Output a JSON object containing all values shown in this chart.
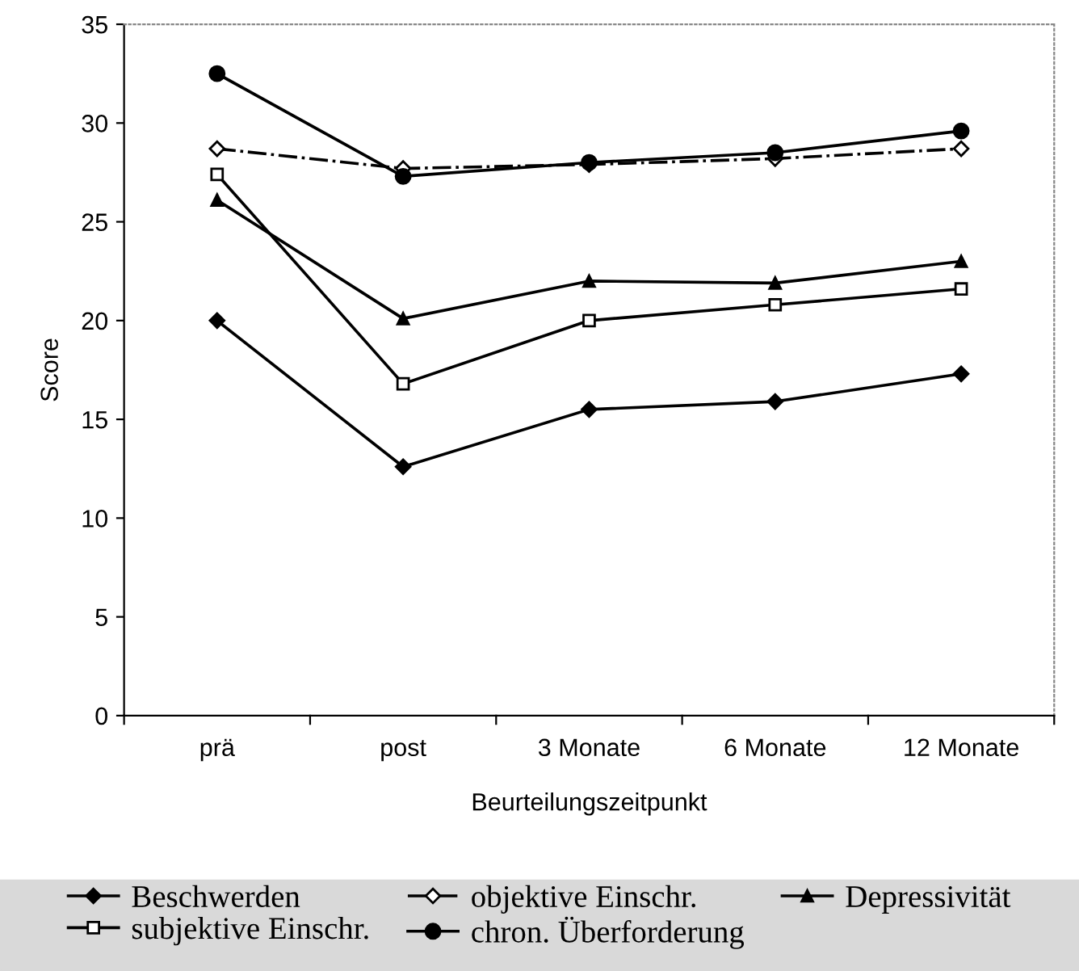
{
  "chart_data": {
    "type": "line",
    "xlabel": "Beurteilungszeitpunkt",
    "ylabel": "Score",
    "categories": [
      "prä",
      "post",
      "3 Monate",
      "6 Monate",
      "12 Monate"
    ],
    "ylim": [
      0,
      35
    ],
    "yticks": [
      0,
      5,
      10,
      15,
      20,
      25,
      30,
      35
    ],
    "grid": false,
    "legend": "bottom",
    "series": [
      {
        "name": "Beschwerden",
        "color": "#000000",
        "marker": "diamond",
        "line_style": "solid",
        "values": [
          20.0,
          12.6,
          15.5,
          15.9,
          17.3
        ]
      },
      {
        "name": "objektive Einschr.",
        "color": "#000000",
        "marker": "diamond_open",
        "line_style": "dashdot",
        "values": [
          28.7,
          27.7,
          27.9,
          28.2,
          28.7
        ]
      },
      {
        "name": "Depressivität",
        "color": "#000000",
        "marker": "triangle",
        "line_style": "solid",
        "values": [
          26.1,
          20.1,
          22.0,
          21.9,
          23.0
        ]
      },
      {
        "name": "subjektive Einschr.",
        "color": "#000000",
        "marker": "square_open",
        "line_style": "solid",
        "values": [
          27.4,
          16.8,
          20.0,
          20.8,
          21.6
        ]
      },
      {
        "name": "chron. Überforderung",
        "color": "#000000",
        "marker": "circle",
        "line_style": "solid",
        "values": [
          32.5,
          27.3,
          28.0,
          28.5,
          29.6
        ]
      }
    ]
  }
}
